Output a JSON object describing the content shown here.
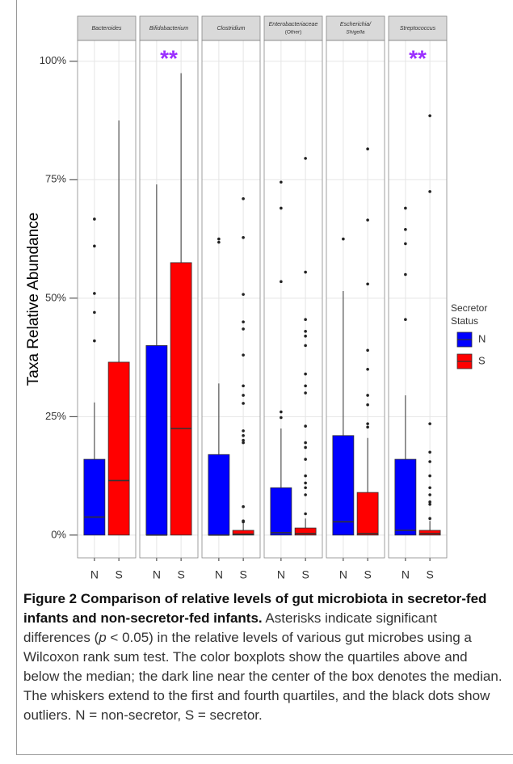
{
  "chart_data": {
    "type": "box",
    "ylabel": "Taxa Relative Abundance",
    "ylim": [
      -4.8,
      104.4
    ],
    "yticks": [
      {
        "value": 0,
        "label": "0%"
      },
      {
        "value": 25,
        "label": "25%"
      },
      {
        "value": 50,
        "label": "50%"
      },
      {
        "value": 75,
        "label": "75%"
      },
      {
        "value": 100,
        "label": "100%"
      }
    ],
    "grid": true,
    "categories": [
      "N",
      "S"
    ],
    "legend_title": [
      "Secretor",
      "Status"
    ],
    "series": [
      {
        "name": "N",
        "color": "#0000ff"
      },
      {
        "name": "S",
        "color": "#ff0000"
      }
    ],
    "annotation_color": "#9b30ff",
    "panels": [
      {
        "title": [
          "Bacteroides"
        ],
        "boxes": [
          {
            "low": 0,
            "q1": 0,
            "median": 3.8,
            "q3": 16,
            "high": 28,
            "outliers": [
              66.7,
              61,
              51,
              47,
              41
            ]
          },
          {
            "low": 0,
            "q1": 0,
            "median": 11.5,
            "q3": 36.5,
            "high": 87.5,
            "outliers": []
          }
        ]
      },
      {
        "title": [
          "Bifidobacterium"
        ],
        "annotation": "**",
        "boxes": [
          {
            "low": 0,
            "q1": 0,
            "median": 0,
            "q3": 40,
            "high": 74,
            "outliers": []
          },
          {
            "low": 0,
            "q1": 0,
            "median": 22.5,
            "q3": 57.5,
            "high": 97.5,
            "outliers": []
          }
        ]
      },
      {
        "title": [
          "Clostridium"
        ],
        "boxes": [
          {
            "low": 0,
            "q1": 0,
            "median": 0,
            "q3": 17,
            "high": 32,
            "outliers": [
              62.5,
              61.8
            ]
          },
          {
            "low": 0,
            "q1": 0,
            "median": 0.2,
            "q3": 1,
            "high": 2.5,
            "outliers": [
              71,
              62.8,
              50.8,
              45,
              43.5,
              38,
              31.5,
              29.5,
              27.8,
              22,
              21,
              20,
              19.5,
              6,
              3,
              2.8
            ]
          }
        ]
      },
      {
        "title": [
          "Enterobacteriaceae",
          "(Other)"
        ],
        "boxes": [
          {
            "low": 0,
            "q1": 0,
            "median": 0.5,
            "q3": 10,
            "high": 22.5,
            "outliers": [
              74.5,
              69,
              53.5,
              26,
              24.8
            ]
          },
          {
            "low": 0,
            "q1": 0,
            "median": 0.3,
            "q3": 1.5,
            "high": 3.5,
            "outliers": [
              79.5,
              55.5,
              45.5,
              43,
              42,
              40,
              34,
              31.5,
              30,
              23,
              19.5,
              18.5,
              16,
              12.5,
              11,
              10,
              8.5,
              4.5
            ]
          }
        ]
      },
      {
        "title": [
          "Escherichia/",
          "Shigella"
        ],
        "boxes": [
          {
            "low": 0,
            "q1": 0,
            "median": 2.8,
            "q3": 21,
            "high": 51.5,
            "outliers": [
              62.5
            ]
          },
          {
            "low": 0,
            "q1": 0,
            "median": 0.3,
            "q3": 9,
            "high": 20.5,
            "outliers": [
              81.5,
              66.5,
              53,
              39,
              35,
              29.5,
              27.5,
              23.5,
              22.8
            ]
          }
        ]
      },
      {
        "title": [
          "Streptococcus"
        ],
        "annotation": "**",
        "boxes": [
          {
            "low": 0,
            "q1": 0,
            "median": 1,
            "q3": 16,
            "high": 29.5,
            "outliers": [
              69,
              64.5,
              61.5,
              55,
              45.5
            ]
          },
          {
            "low": 0,
            "q1": 0,
            "median": 0.3,
            "q3": 1,
            "high": 3,
            "outliers": [
              88.5,
              72.5,
              23.5,
              17.5,
              15.5,
              12.5,
              10,
              8.5,
              7,
              6.5,
              3.5
            ]
          }
        ]
      }
    ]
  },
  "caption": {
    "title": "Figure 2 Comparison of relative levels of gut microbiota in secretor-fed infants and non-secretor-fed infants.",
    "body": [
      " Asterisks indicate significant differences (",
      "p",
      " < 0.05) in the relative levels of various gut microbes using a Wilcoxon rank sum test. The color boxplots show the quartiles above and below the median; the dark line near the center of the box denotes the median. The whiskers extend to the first and fourth quartiles, and the black dots show outliers. N = non-secretor, S = secretor."
    ]
  }
}
